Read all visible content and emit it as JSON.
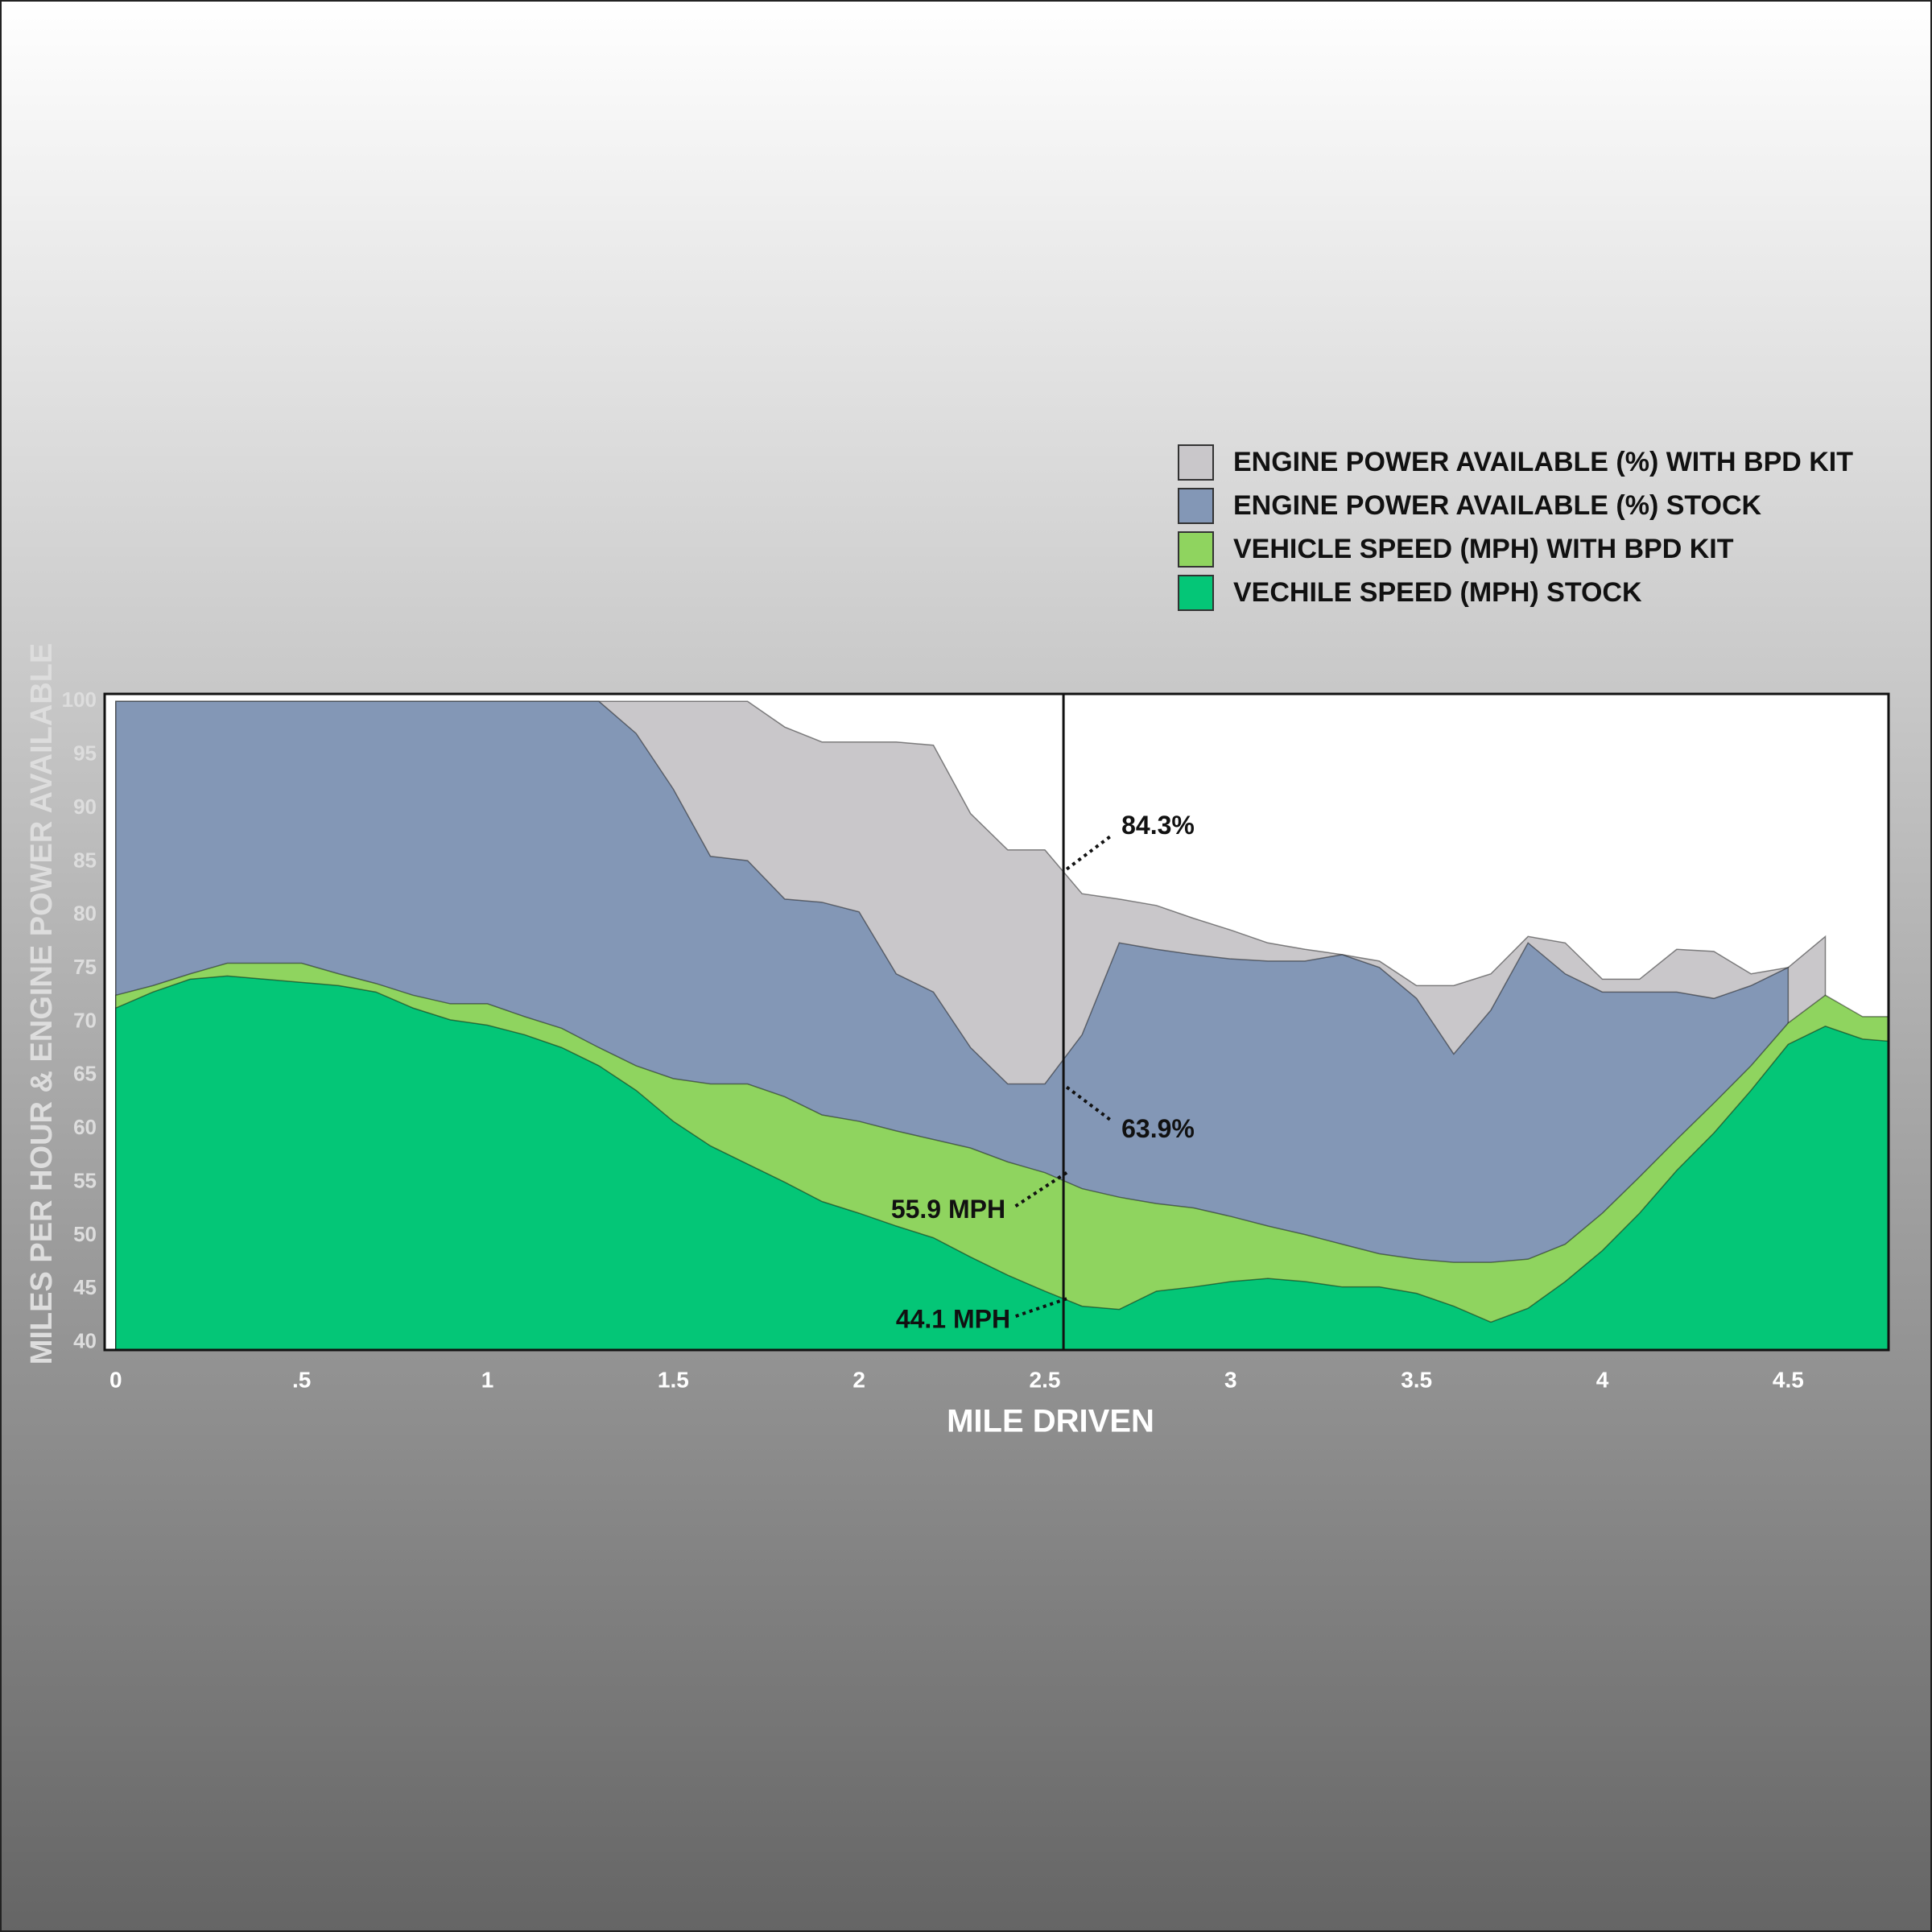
{
  "chart_data": {
    "type": "area",
    "y_label": "MILES PER HOUR & ENGINE POWER AVAILABLE",
    "x_label": "MILE DRIVEN",
    "x": [
      0,
      0.1,
      0.2,
      0.3,
      0.4,
      0.5,
      0.6,
      0.7,
      0.8,
      0.9,
      1,
      1.1,
      1.2,
      1.3,
      1.4,
      1.5,
      1.6,
      1.7,
      1.8,
      1.9,
      2,
      2.1,
      2.2,
      2.3,
      2.4,
      2.5,
      2.6,
      2.7,
      2.8,
      2.9,
      3,
      3.1,
      3.2,
      3.3,
      3.4,
      3.5,
      3.6,
      3.7,
      3.8,
      3.9,
      4,
      4.1,
      4.2,
      4.3,
      4.4,
      4.5,
      4.6,
      4.7,
      4.77
    ],
    "series": [
      {
        "name": "ENGINE POWER AVAILABLE (%) WITH BPD KIT",
        "color": "#c9c7ca",
        "values": [
          100,
          100,
          100,
          100,
          100,
          100,
          100,
          100,
          100,
          100,
          100,
          100,
          100,
          100,
          100,
          100,
          100,
          100,
          97.6,
          96.2,
          96.2,
          96.2,
          95.9,
          89.5,
          86.1,
          86.1,
          82,
          81.5,
          80.9,
          79.7,
          78.6,
          77.4,
          76.8,
          76.3,
          75.7,
          73.4,
          73.4,
          74.5,
          78,
          77.4,
          74,
          74,
          76.8,
          76.6,
          74.5,
          75.1,
          78,
          null,
          null
        ]
      },
      {
        "name": "ENGINE POWER AVAILABLE (%) STOCK",
        "color": "#8397b6",
        "values": [
          100,
          100,
          100,
          100,
          100,
          100,
          100,
          100,
          100,
          100,
          100,
          100,
          100,
          100,
          97,
          91.8,
          85.5,
          85.1,
          81.5,
          81.2,
          80.3,
          74.5,
          72.8,
          67.6,
          64.2,
          64.2,
          68.8,
          77.4,
          76.8,
          76.3,
          75.9,
          75.7,
          75.7,
          76.3,
          75.1,
          72.2,
          67,
          71.1,
          77.4,
          74.5,
          72.8,
          72.8,
          72.8,
          72.2,
          73.4,
          75.1,
          null,
          null,
          null
        ]
      },
      {
        "name": "VEHICLE SPEED (MPH) WITH BPD KIT",
        "color": "#8fd45f",
        "values": [
          72.5,
          73.4,
          74.5,
          75.5,
          75.5,
          75.5,
          74.5,
          73.6,
          72.5,
          71.7,
          71.7,
          70.5,
          69.4,
          67.6,
          65.9,
          64.7,
          64.2,
          64.2,
          63,
          61.3,
          60.7,
          59.8,
          59,
          58.2,
          56.9,
          55.9,
          54.4,
          53.6,
          53,
          52.6,
          51.8,
          50.9,
          50.1,
          49.2,
          48.3,
          47.8,
          47.5,
          47.5,
          47.8,
          49.2,
          52.1,
          55.5,
          59,
          62.4,
          65.9,
          69.9,
          72.5,
          70.5,
          70.5
        ]
      },
      {
        "name": "VECHILE SPEED (MPH) STOCK",
        "color": "#04c677",
        "values": [
          71.3,
          72.8,
          74,
          74.3,
          74,
          73.7,
          73.4,
          72.8,
          71.3,
          70.2,
          69.7,
          68.8,
          67.6,
          65.9,
          63.6,
          60.7,
          58.4,
          56.7,
          55,
          53.2,
          52.1,
          50.9,
          49.8,
          48,
          46.3,
          44.8,
          43.4,
          43.1,
          44.8,
          45.2,
          45.7,
          46,
          45.7,
          45.2,
          45.2,
          44.6,
          43.4,
          41.9,
          43.2,
          45.7,
          48.6,
          52.1,
          56.1,
          59.6,
          63.6,
          67.9,
          69.6,
          68.4,
          68.2
        ]
      }
    ],
    "xlim": [
      -0.03,
      4.77
    ],
    "ylim": [
      39.3,
      100.7
    ],
    "xticks": [
      0,
      {
        "value": 0.5,
        "label": ".5"
      },
      1,
      1.5,
      2,
      2.5,
      3,
      3.5,
      4,
      4.5
    ],
    "yticks": [
      40,
      45,
      50,
      55,
      60,
      65,
      70,
      75,
      80,
      85,
      90,
      95,
      100
    ],
    "marker_x": 2.55,
    "annotations": [
      {
        "value": 84.3,
        "label": "84.3%"
      },
      {
        "value": 63.9,
        "label": "63.9%"
      },
      {
        "value": 55.9,
        "label": "55.9 MPH"
      },
      {
        "value": 44.1,
        "label": "44.1 MPH"
      }
    ],
    "grid": false,
    "legend": "top-right"
  }
}
